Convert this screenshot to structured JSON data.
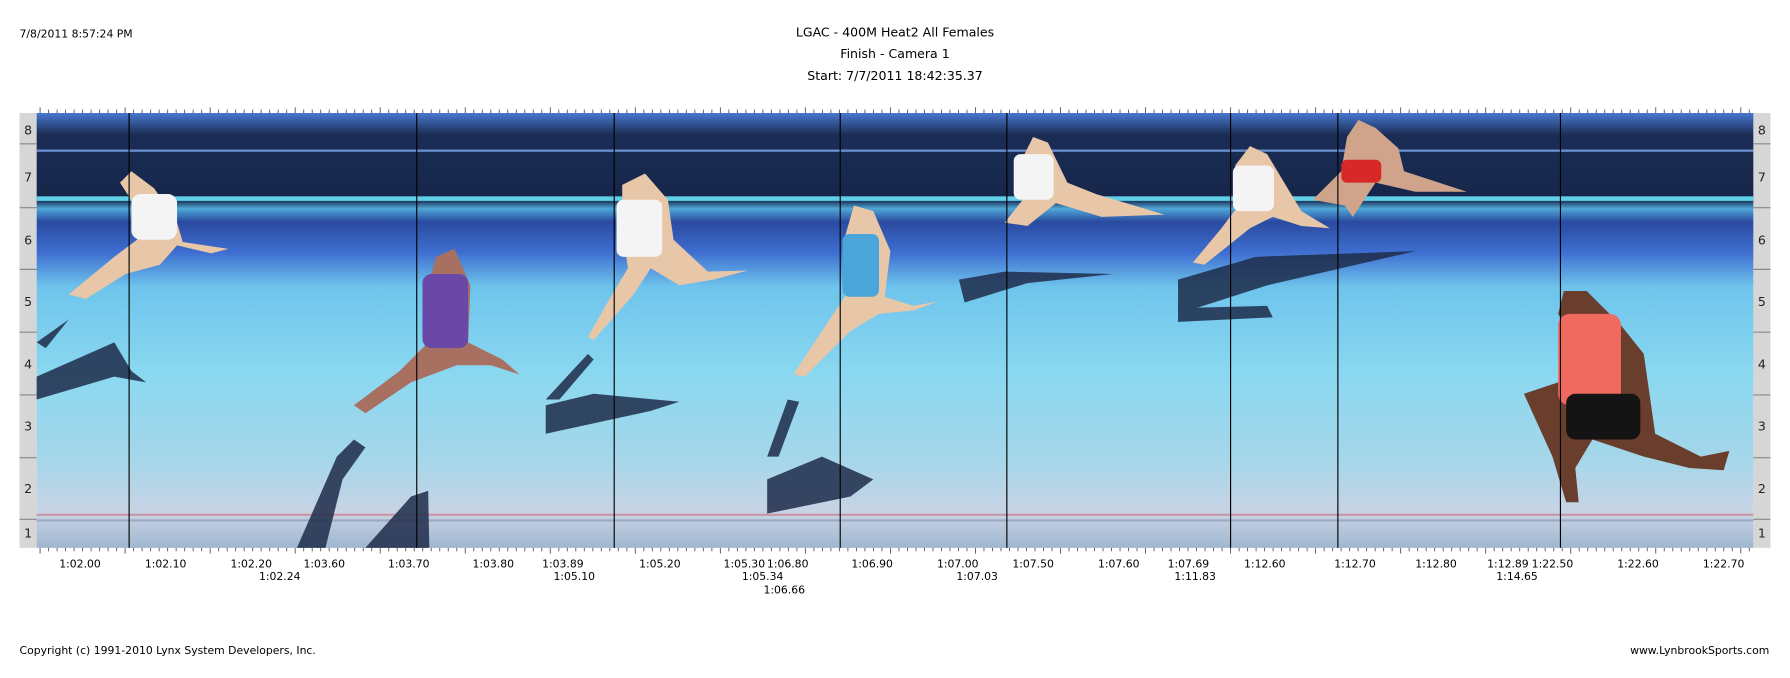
{
  "header": {
    "timestamp": "7/8/2011 8:57:24 PM",
    "title": "LGAC - 400M Heat2 All Females",
    "subtitle": "Finish - Camera 1",
    "start": "Start: 7/7/2011 18:42:35.37"
  },
  "lanes": [
    "8",
    "7",
    "6",
    "5",
    "4",
    "3",
    "2",
    "1"
  ],
  "time_labels": {
    "scale": [
      "1:02.00",
      "1:02.10",
      "1:02.20",
      "1:03.60",
      "1:03.70",
      "1:03.80",
      "1:03.89",
      "1:05.20",
      "1:05.30",
      "1:06.80",
      "1:06.90",
      "1:07.00",
      "1:07.50",
      "1:07.60",
      "1:07.69",
      "1:12.60",
      "1:12.70",
      "1:12.80",
      "1:12.89",
      "1:22.50",
      "1:22.60",
      "1:22.70"
    ],
    "finish_times": [
      "1:02.24",
      "1:05.10",
      "1:05.34",
      "1:07.03",
      "1:11.83",
      "1:14.65"
    ],
    "extra": [
      "1:06.66"
    ]
  },
  "footer": {
    "copyright": "Copyright (c) 1991-2010 Lynx System Developers, Inc.",
    "website": "www.LynbrookSports.com"
  }
}
